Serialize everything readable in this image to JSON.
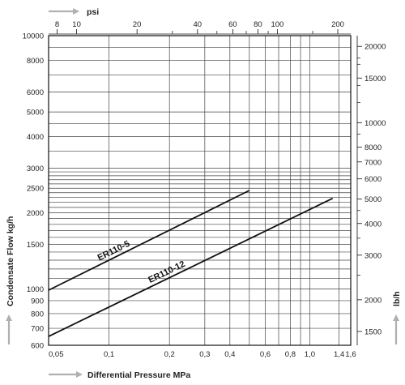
{
  "chart_data": {
    "type": "line",
    "title": "",
    "xlabel": "Differential Pressure MPa",
    "ylabel": "Condensate Flow kg/h",
    "top_axis_label": "psi",
    "right_axis_label": "lb/h",
    "x_scale": "log",
    "y_scale": "log",
    "xlim": [
      0.05,
      1.6
    ],
    "ylim": [
      600,
      10000
    ],
    "grid": true,
    "x_ticks": [
      {
        "value": 0.05,
        "label": "0,05"
      },
      {
        "value": 0.1,
        "label": "0,1"
      },
      {
        "value": 0.2,
        "label": "0,2"
      },
      {
        "value": 0.3,
        "label": "0,3"
      },
      {
        "value": 0.4,
        "label": "0,4"
      },
      {
        "value": 0.6,
        "label": "0,6"
      },
      {
        "value": 0.8,
        "label": "0,8"
      },
      {
        "value": 1.0,
        "label": "1,0"
      },
      {
        "value": 1.4,
        "label": "1,4"
      },
      {
        "value": 1.6,
        "label": "1,6"
      }
    ],
    "x_grid": [
      0.05,
      0.1,
      0.2,
      0.3,
      0.4,
      0.5,
      0.6,
      0.7,
      0.8,
      0.9,
      1.0,
      1.4,
      1.6
    ],
    "y_ticks": [
      {
        "value": 600,
        "label": "600"
      },
      {
        "value": 700,
        "label": "700"
      },
      {
        "value": 800,
        "label": "800"
      },
      {
        "value": 900,
        "label": "900"
      },
      {
        "value": 1000,
        "label": "1000"
      },
      {
        "value": 1500,
        "label": "1500"
      },
      {
        "value": 2000,
        "label": "2000"
      },
      {
        "value": 2500,
        "label": "2500"
      },
      {
        "value": 3000,
        "label": "3000"
      },
      {
        "value": 4000,
        "label": "4000"
      },
      {
        "value": 5000,
        "label": "5000"
      },
      {
        "value": 6000,
        "label": "6000"
      },
      {
        "value": 8000,
        "label": "8000"
      },
      {
        "value": 10000,
        "label": "10000"
      }
    ],
    "y_grid": [
      600,
      700,
      800,
      900,
      1000,
      1100,
      1200,
      1300,
      1400,
      1500,
      1600,
      1700,
      1800,
      1900,
      2000,
      2100,
      2200,
      2300,
      2400,
      2500,
      2600,
      2700,
      2800,
      2900,
      3000,
      3500,
      4000,
      4500,
      5000,
      6000,
      7000,
      8000,
      9000,
      10000
    ],
    "top_ticks": [
      {
        "value": 8,
        "label": "8"
      },
      {
        "value": 10,
        "label": "10"
      },
      {
        "value": 20,
        "label": "20"
      },
      {
        "value": 40,
        "label": "40"
      },
      {
        "value": 60,
        "label": "60"
      },
      {
        "value": 80,
        "label": "80"
      },
      {
        "value": 100,
        "label": "100"
      },
      {
        "value": 200,
        "label": "200"
      }
    ],
    "top_minor_ticks": [
      30,
      50,
      70,
      90,
      150
    ],
    "right_ticks": [
      {
        "value": 1500,
        "label": "1500"
      },
      {
        "value": 2000,
        "label": "2000"
      },
      {
        "value": 3000,
        "label": "3000"
      },
      {
        "value": 4000,
        "label": "4000"
      },
      {
        "value": 5000,
        "label": "5000"
      },
      {
        "value": 6000,
        "label": "6000"
      },
      {
        "value": 7000,
        "label": "7000"
      },
      {
        "value": 8000,
        "label": "8000"
      },
      {
        "value": 10000,
        "label": "10000"
      },
      {
        "value": 15000,
        "label": "15000"
      },
      {
        "value": 20000,
        "label": "20000"
      }
    ],
    "right_minor_ticks": [
      2500,
      3500,
      4500,
      9000,
      12000,
      14000,
      17000,
      18000
    ],
    "series": [
      {
        "name": "ER110-5",
        "x": [
          0.05,
          0.5
        ],
        "y": [
          990,
          2450
        ]
      },
      {
        "name": "ER110-12",
        "x": [
          0.05,
          1.3
        ],
        "y": [
          650,
          2280
        ]
      }
    ],
    "colors": {
      "line": "#111111",
      "grid": "#444444",
      "arrow": "#b0b0b0"
    }
  }
}
